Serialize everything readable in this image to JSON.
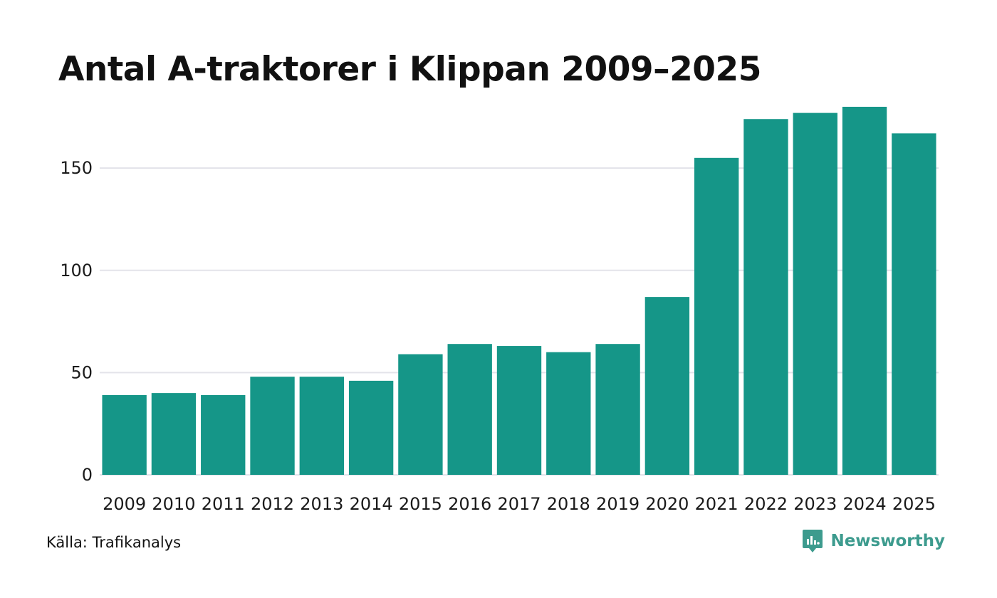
{
  "title": "Antal A-traktorer i Klippan 2009–2025",
  "source": "Källa: Trafikanalys",
  "brand": {
    "name": "Newsworthy",
    "icon": "newsworthy-logo-icon"
  },
  "colors": {
    "bar": "#159688",
    "grid": "#e3e3ea",
    "brand": "#3d9b8e"
  },
  "chart_data": {
    "type": "bar",
    "title": "Antal A-traktorer i Klippan 2009–2025",
    "xlabel": "",
    "ylabel": "",
    "categories": [
      "2009",
      "2010",
      "2011",
      "2012",
      "2013",
      "2014",
      "2015",
      "2016",
      "2017",
      "2018",
      "2019",
      "2020",
      "2021",
      "2022",
      "2023",
      "2024",
      "2025"
    ],
    "values": [
      39,
      40,
      39,
      48,
      48,
      46,
      59,
      64,
      63,
      60,
      64,
      87,
      155,
      174,
      177,
      180,
      167
    ],
    "ylim": [
      0,
      180
    ],
    "yticks": [
      0,
      50,
      100,
      150
    ],
    "grid": true
  }
}
